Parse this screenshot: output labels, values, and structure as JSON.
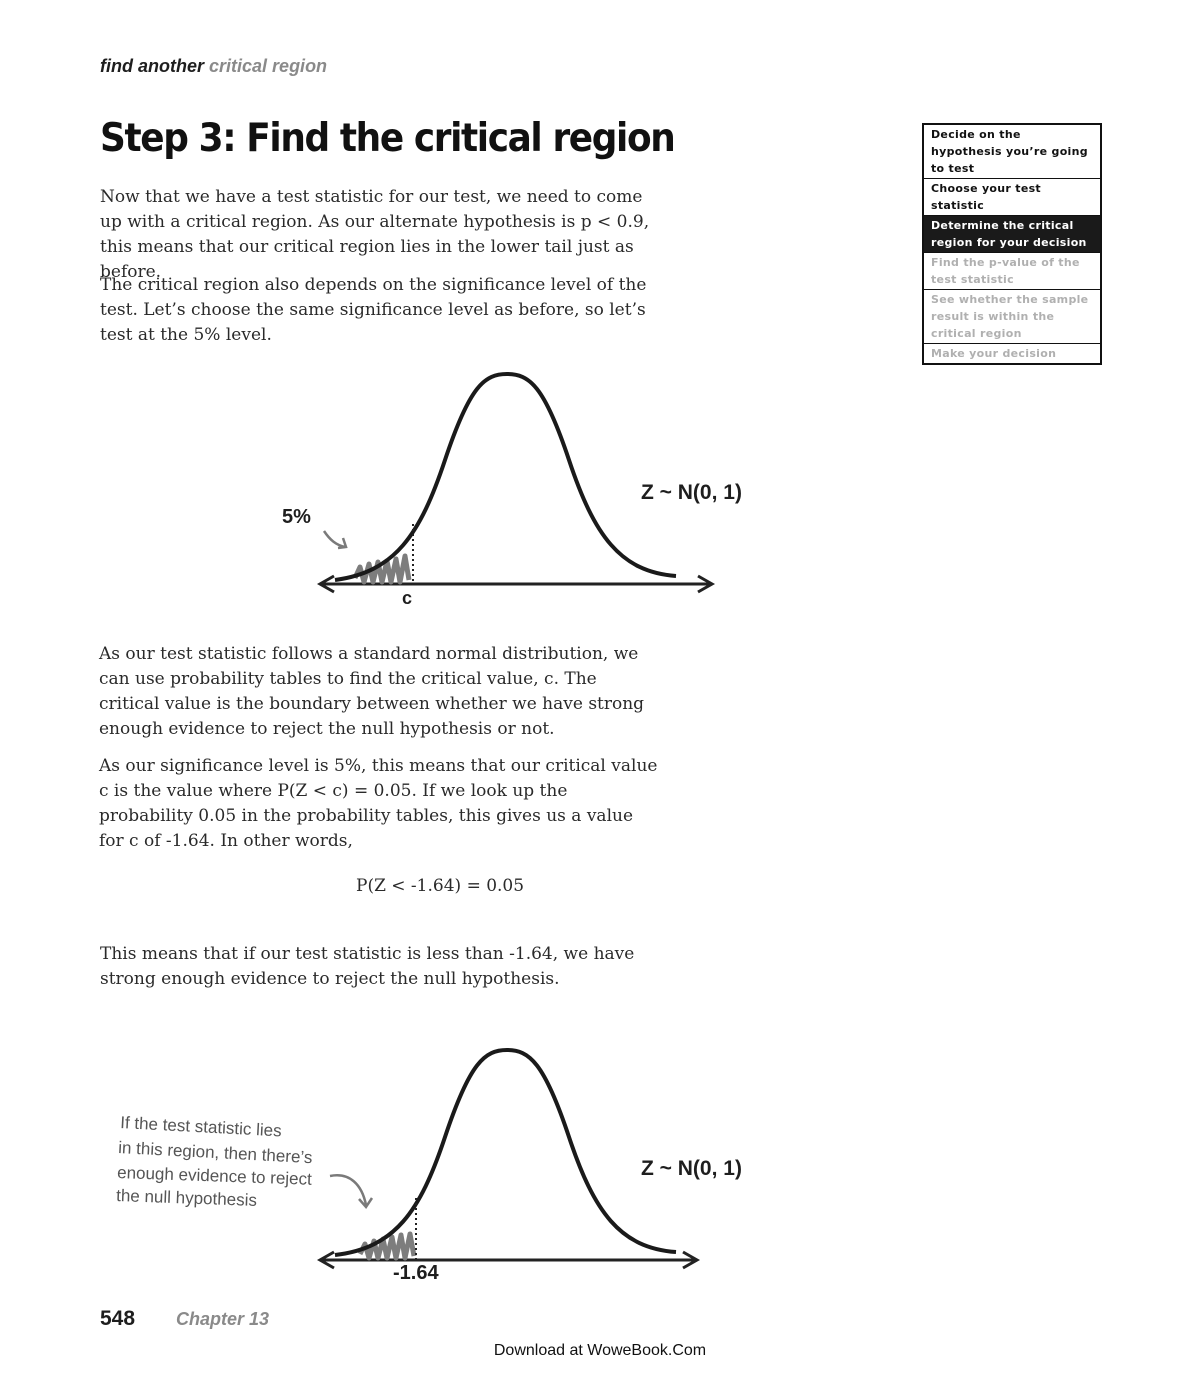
{
  "header": {
    "running_head_bold": "find another",
    "running_head_light": "critical region"
  },
  "title": "Step 3: Find the critical region",
  "paragraphs": {
    "p1": "Now that we have a test statistic for our test, we need to come up with a critical region. As our alternate hypothesis is p < 0.9, this means that our critical region lies in the lower tail just as before.",
    "p2": "The critical region also depends on the significance level of the test. Let’s choose the same significance level as before, so let’s test at the 5% level.",
    "p3": "As our test statistic follows a standard normal distribution, we can use probability tables to find the critical value, c. The critical value is the boundary between whether we have strong enough evidence to reject the null hypothesis or not.",
    "p4": "As our significance level is 5%, this means that our critical value c is the value where P(Z < c) = 0.05. If we look up the probability 0.05 in the probability tables, this gives us a value for c of -1.64. In other words,",
    "formula": "P(Z < -1.64) = 0.05",
    "p5": "This means that if our test statistic is less than -1.64, we have strong enough evidence to reject the null hypothesis."
  },
  "steps_box": {
    "items": [
      {
        "label": "Decide on the hypothesis you’re going to test",
        "state": "done"
      },
      {
        "label": "Choose your test statistic",
        "state": "done"
      },
      {
        "label": "Determine the critical region for your decision",
        "state": "active"
      },
      {
        "label": "Find the p-value of the test statistic",
        "state": "todo"
      },
      {
        "label": "See whether the sample result is within the critical region",
        "state": "todo"
      },
      {
        "label": "Make your decision",
        "state": "todo"
      }
    ]
  },
  "figure1": {
    "distribution_label": "Z ~ N(0, 1)",
    "tail_label": "5%",
    "critical_label": "c"
  },
  "figure2": {
    "distribution_label": "Z ~ N(0, 1)",
    "critical_label": "-1.64",
    "annotation_lines": [
      "If the test statistic lies",
      "in this region, then there’s",
      "enough evidence to reject",
      "the null hypothesis"
    ]
  },
  "footer": {
    "page_number": "548",
    "chapter": "Chapter 13",
    "download_note": "Download at WoweBook.Com"
  }
}
